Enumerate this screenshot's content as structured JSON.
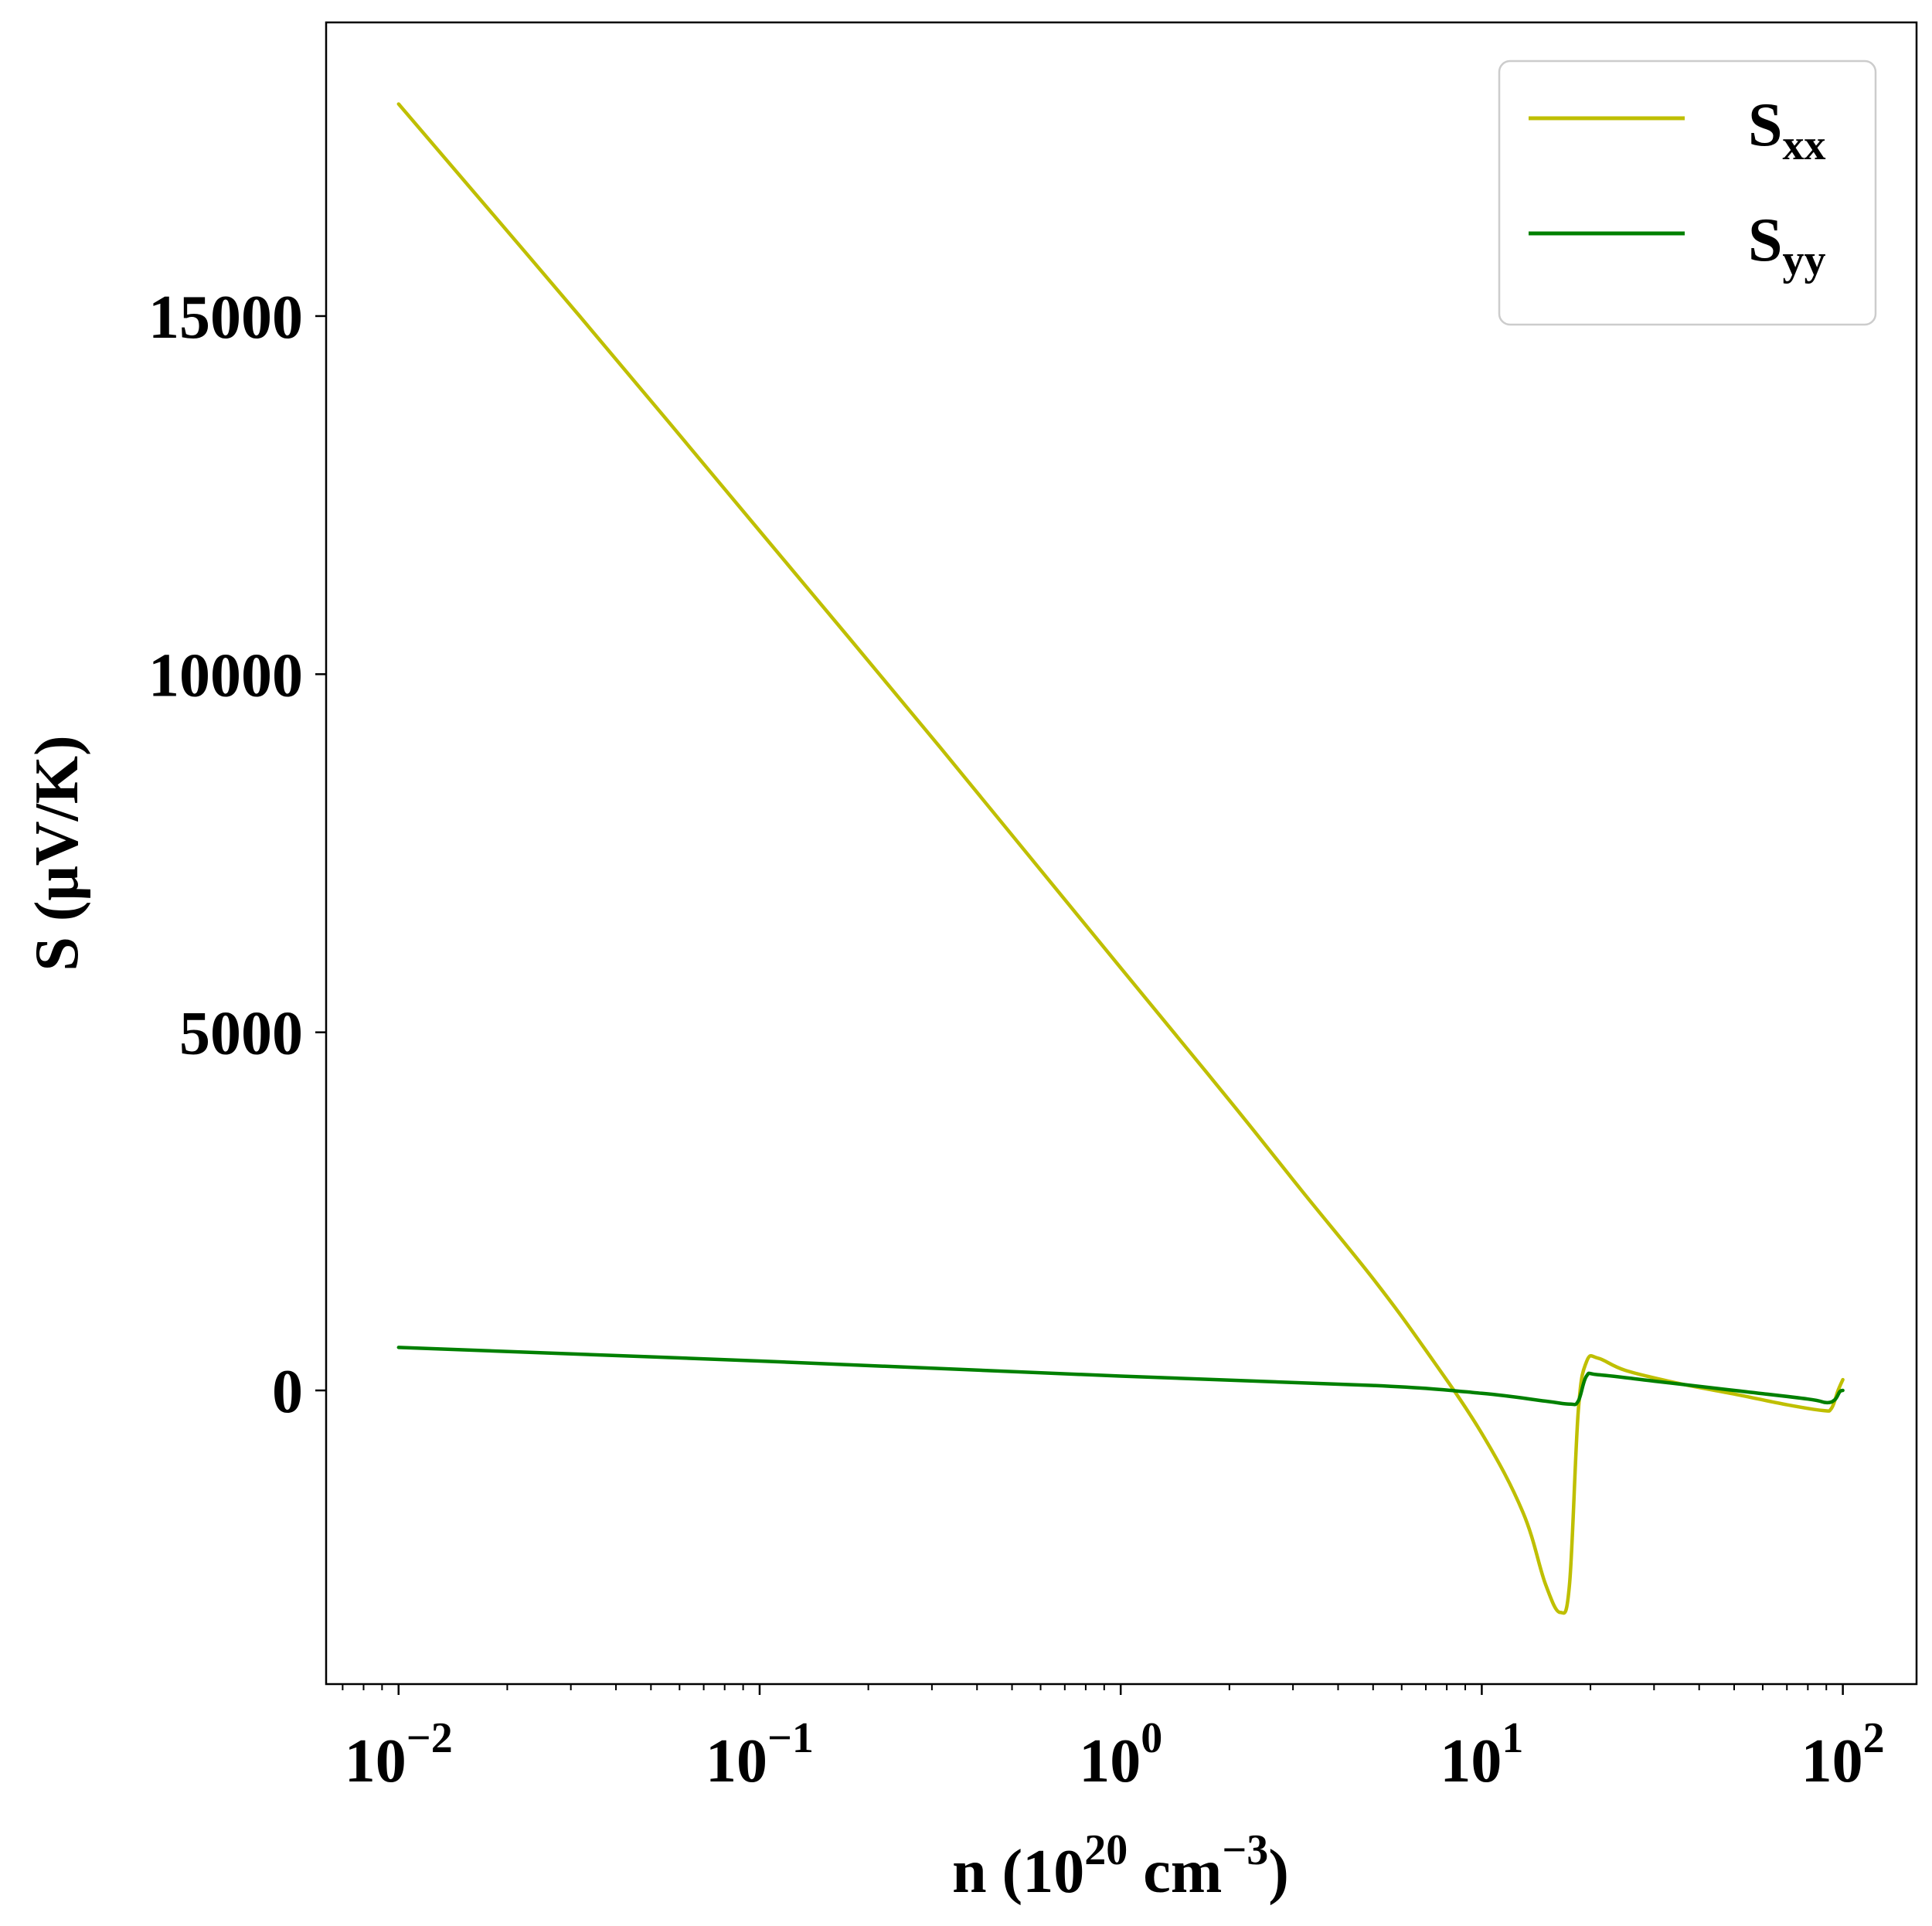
{
  "chart_data": {
    "type": "line",
    "xscale": "log",
    "xlim": [
      0.0063,
      160
    ],
    "ylim": [
      -4100,
      19100
    ],
    "xlabel": {
      "main": "n (10",
      "sup1": "20",
      "mid": " cm",
      "sup2": "−3",
      "end": ")"
    },
    "ylabel": "S (μV/K)",
    "xticks": [
      {
        "value": 0.01,
        "base": "10",
        "exp": "−2"
      },
      {
        "value": 0.1,
        "base": "10",
        "exp": "−1"
      },
      {
        "value": 1,
        "base": "10",
        "exp": "0"
      },
      {
        "value": 10,
        "base": "10",
        "exp": "1"
      },
      {
        "value": 100,
        "base": "10",
        "exp": "2"
      }
    ],
    "yticks": [
      {
        "value": 0,
        "label": "0"
      },
      {
        "value": 5000,
        "label": "5000"
      },
      {
        "value": 10000,
        "label": "10000"
      },
      {
        "value": 15000,
        "label": "15000"
      }
    ],
    "grid": false,
    "legend": {
      "position": "upper right",
      "entries": [
        {
          "base": "S",
          "sub": "xx",
          "color": "#bfbf00"
        },
        {
          "base": "S",
          "sub": "yy",
          "color": "#008000"
        }
      ]
    },
    "series": [
      {
        "name": "Sxx",
        "color": "#bfbf00",
        "points": [
          [
            0.01,
            17960
          ],
          [
            0.0316,
            15010
          ],
          [
            0.1,
            12000
          ],
          [
            0.316,
            8980
          ],
          [
            1,
            5900
          ],
          [
            2,
            4050
          ],
          [
            3.16,
            2800
          ],
          [
            5,
            1560
          ],
          [
            7,
            560
          ],
          [
            10,
            -600
          ],
          [
            13,
            -1700
          ],
          [
            15,
            -2700
          ],
          [
            16.5,
            -3100
          ],
          [
            17.5,
            -2700
          ],
          [
            18.5,
            -300
          ],
          [
            19.5,
            400
          ],
          [
            21,
            450
          ],
          [
            25,
            280
          ],
          [
            35,
            100
          ],
          [
            50,
            -50
          ],
          [
            70,
            -200
          ],
          [
            88,
            -280
          ],
          [
            93,
            -250
          ],
          [
            97,
            0
          ],
          [
            100,
            150
          ]
        ]
      },
      {
        "name": "Syy",
        "color": "#008000",
        "points": [
          [
            0.01,
            600
          ],
          [
            0.1,
            410
          ],
          [
            1,
            200
          ],
          [
            5,
            70
          ],
          [
            10,
            -40
          ],
          [
            15,
            -150
          ],
          [
            17.5,
            -190
          ],
          [
            18.5,
            -150
          ],
          [
            19.5,
            200
          ],
          [
            21,
            220
          ],
          [
            30,
            130
          ],
          [
            50,
            0
          ],
          [
            80,
            -120
          ],
          [
            90,
            -170
          ],
          [
            95,
            -130
          ],
          [
            98,
            -20
          ],
          [
            100,
            0
          ]
        ]
      }
    ]
  }
}
